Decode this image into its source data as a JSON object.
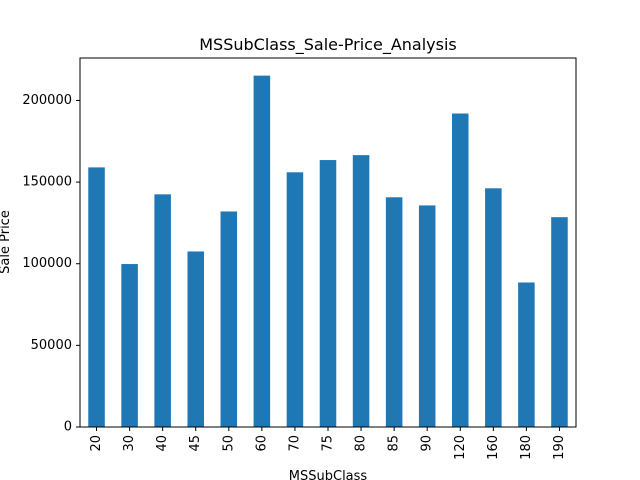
{
  "chart_data": {
    "type": "bar",
    "title": "MSSubClass_Sale-Price_Analysis",
    "xlabel": "MSSubClass",
    "ylabel": "Sale Price",
    "categories": [
      "20",
      "30",
      "40",
      "45",
      "50",
      "60",
      "70",
      "75",
      "80",
      "85",
      "90",
      "120",
      "160",
      "180",
      "190"
    ],
    "values": [
      159000,
      99800,
      142500,
      107500,
      132000,
      215200,
      156000,
      163500,
      166500,
      140700,
      135700,
      192000,
      146200,
      88500,
      128500
    ],
    "ylim": [
      0,
      226000
    ],
    "yticks": [
      0,
      50000,
      100000,
      150000,
      200000
    ],
    "ytick_labels": [
      "0",
      "50000",
      "100000",
      "150000",
      "200000"
    ],
    "grid": false,
    "legend": "none",
    "bar_color": "#1f77b4"
  }
}
